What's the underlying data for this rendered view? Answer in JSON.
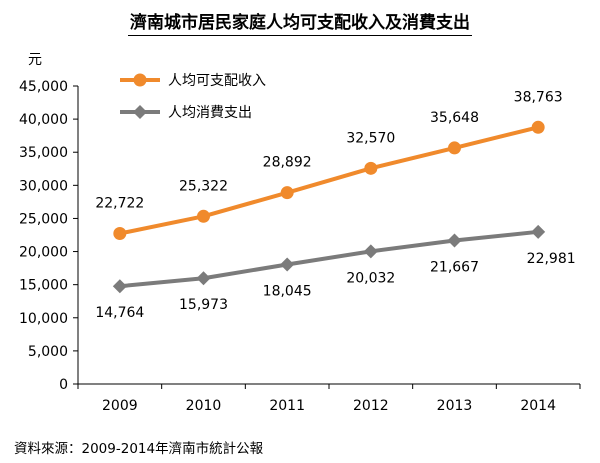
{
  "chart_data": {
    "type": "line",
    "title": "濟南城市居民家庭人均可支配收入及消費支出",
    "ylabel": "元",
    "xlabel": "",
    "categories": [
      "2009",
      "2010",
      "2011",
      "2012",
      "2013",
      "2014"
    ],
    "ylim": [
      0,
      45000
    ],
    "yticks": [
      "0",
      "5,000",
      "10,000",
      "15,000",
      "20,000",
      "25,000",
      "30,000",
      "35,000",
      "40,000",
      "45,000"
    ],
    "grid": false,
    "legend_position": "top-left",
    "series": [
      {
        "name": "人均可支配收入",
        "color": "#f08a2c",
        "marker": "circle",
        "values": [
          22722,
          25322,
          28892,
          32570,
          35648,
          38763
        ],
        "labels": [
          "22,722",
          "25,322",
          "28,892",
          "32,570",
          "35,648",
          "38,763"
        ]
      },
      {
        "name": "人均消費支出",
        "color": "#7b7b7b",
        "marker": "diamond",
        "values": [
          14764,
          15973,
          18045,
          20032,
          21667,
          22981
        ],
        "labels": [
          "14,764",
          "15,973",
          "18,045",
          "20,032",
          "21,667",
          "22,981"
        ]
      }
    ]
  },
  "source": "資料來源：2009-2014年濟南市統計公報"
}
